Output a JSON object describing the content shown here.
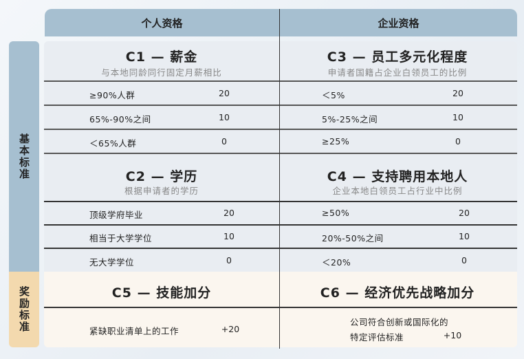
{
  "header": {
    "personal": "个人资格",
    "enterprise": "企业资格"
  },
  "side": {
    "basic": "基本标准",
    "bonus": "奖励标准"
  },
  "colors": {
    "header": "#a6bfd0",
    "panel": "#e9edf2",
    "bonus_panel": "#fbf6ef",
    "bonus_label": "#f3d9ae"
  },
  "c1": {
    "title": "C1 — 薪金",
    "sub": "与本地同龄同行固定月薪相比",
    "rows": [
      {
        "label": "≥90%人群",
        "value": "20"
      },
      {
        "label": "65%-90%之间",
        "value": "10"
      },
      {
        "label": "＜65%人群",
        "value": "0"
      }
    ]
  },
  "c2": {
    "title": "C2 — 学历",
    "sub": "根据申请者的学历",
    "rows": [
      {
        "label": "顶级学府毕业",
        "value": "20"
      },
      {
        "label": "相当于大学学位",
        "value": "10"
      },
      {
        "label": "无大学学位",
        "value": "0"
      }
    ]
  },
  "c3": {
    "title": "C3 — 员工多元化程度",
    "sub": "申请者国籍占企业白领员工的比例",
    "rows": [
      {
        "label": "＜5%",
        "value": "20"
      },
      {
        "label": "5%-25%之间",
        "value": "10"
      },
      {
        "label": "≥25%",
        "value": "0"
      }
    ]
  },
  "c4": {
    "title": "C4 — 支持聘用本地人",
    "sub": "企业本地白领员工占行业中比例",
    "rows": [
      {
        "label": "≥50%",
        "value": "20"
      },
      {
        "label": "20%-50%之间",
        "value": "10"
      },
      {
        "label": "＜20%",
        "value": "0"
      }
    ]
  },
  "c5": {
    "title": "C5 — 技能加分",
    "label": "紧缺职业清单上的工作",
    "value": "+20"
  },
  "c6": {
    "title": "C6 — 经济优先战略加分",
    "label1": "公司符合创新或国际化的",
    "label2": "特定评估标准",
    "value": "+10"
  }
}
